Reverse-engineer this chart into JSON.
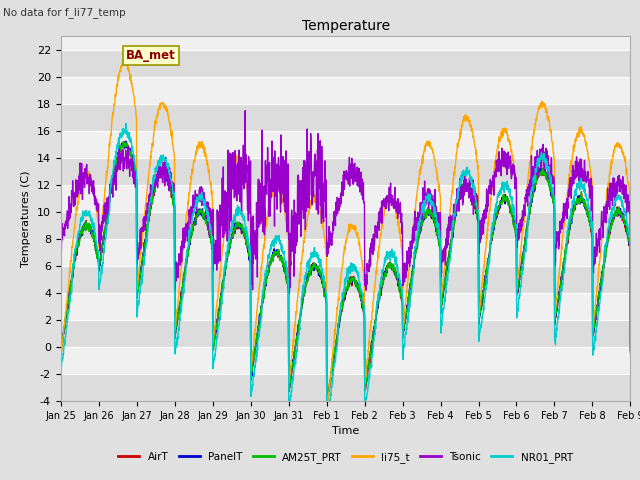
{
  "title": "Temperature",
  "ylabel": "Temperatures (C)",
  "xlabel": "Time",
  "no_data_text": "No data for f_li77_temp",
  "ba_met_label": "BA_met",
  "ylim": [
    -4,
    23
  ],
  "yticks": [
    -4,
    -2,
    0,
    2,
    4,
    6,
    8,
    10,
    12,
    14,
    16,
    18,
    20,
    22
  ],
  "fig_bg_color": "#e0e0e0",
  "plot_bg_color": "#f0f0f0",
  "alt_band_color": "#dcdcdc",
  "series": [
    {
      "name": "AirT",
      "color": "#cc0000"
    },
    {
      "name": "PanelT",
      "color": "#0000cc"
    },
    {
      "name": "AM25T_PRT",
      "color": "#00bb00"
    },
    {
      "name": "li75_t",
      "color": "#ffa500"
    },
    {
      "name": "Tsonic",
      "color": "#9900cc"
    },
    {
      "name": "NR01_PRT",
      "color": "#00cccc"
    }
  ],
  "xtick_labels": [
    "Jan 25",
    "Jan 26",
    "Jan 27",
    "Jan 28",
    "Jan 29",
    "Jan 30",
    "Jan 31",
    "Feb 1",
    "Feb 2",
    "Feb 3",
    "Feb 4",
    "Feb 5",
    "Feb 6",
    "Feb 7",
    "Feb 8",
    "Feb 9"
  ],
  "line_width": 1.0,
  "n_days": 15,
  "pts_per_day": 144,
  "base_air": [
    3,
    9,
    7,
    4,
    3,
    1,
    0,
    -1,
    0,
    4,
    6,
    5,
    7,
    5,
    4,
    3
  ],
  "base_panel": [
    3,
    9,
    7,
    4,
    3,
    1,
    0,
    -1,
    0,
    4,
    6,
    5,
    7,
    5,
    4,
    3
  ],
  "base_am25t": [
    3,
    9,
    7,
    4,
    3,
    1,
    0,
    -1,
    0,
    4,
    6,
    5,
    7,
    5,
    4,
    3
  ],
  "base_li75": [
    4,
    12,
    9,
    6,
    5,
    3,
    2,
    0,
    2,
    6,
    8,
    7,
    9,
    7,
    6,
    5
  ],
  "base_nr01": [
    3,
    9,
    7,
    4,
    3,
    1,
    0,
    -1,
    0,
    4,
    6,
    5,
    7,
    5,
    4,
    3
  ],
  "amp_air": 6,
  "amp_li75": 9,
  "amp_nr01": 6,
  "tsonic_base": [
    8,
    10,
    9,
    7,
    9,
    9,
    9,
    9,
    7,
    7,
    8,
    10,
    10,
    9,
    8,
    7
  ],
  "tsonic_amp": 4
}
